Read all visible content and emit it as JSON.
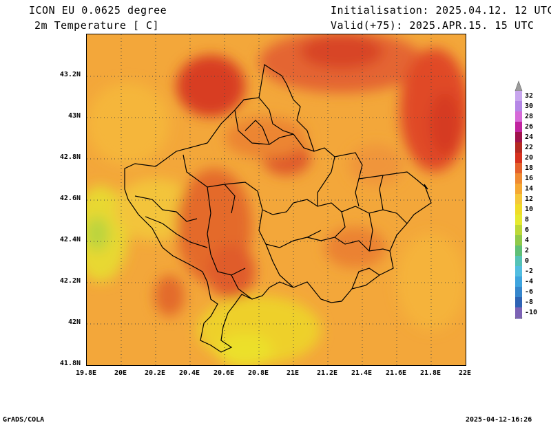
{
  "header": {
    "title_line1": "ICON EU 0.0625 degree",
    "title_line2": "2m Temperature [ C]",
    "init_line": "Initialisation: 2025.04.12. 12 UTC",
    "valid_line": "Valid(+75): 2025.APR.15. 15 UTC"
  },
  "axes": {
    "x_ticks": [
      "19.8E",
      "20E",
      "20.2E",
      "20.4E",
      "20.6E",
      "20.8E",
      "21E",
      "21.2E",
      "21.4E",
      "21.6E",
      "21.8E",
      "22E"
    ],
    "y_ticks": [
      "43.2N",
      "43N",
      "42.8N",
      "42.6N",
      "42.4N",
      "42.2N",
      "42N",
      "41.8N"
    ]
  },
  "colorbar": {
    "levels": [
      "32",
      "30",
      "28",
      "26",
      "24",
      "22",
      "20",
      "18",
      "16",
      "14",
      "12",
      "10",
      "8",
      "6",
      "4",
      "2",
      "0",
      "-2",
      "-4",
      "-6",
      "-8",
      "-10"
    ],
    "colors": [
      "#c8a6ee",
      "#b587e6",
      "#d66ad8",
      "#c0249f",
      "#a0134c",
      "#b42a22",
      "#d6321f",
      "#e4612c",
      "#ef8a32",
      "#f5a833",
      "#f5c73a",
      "#f0dc28",
      "#e6ea30",
      "#bcd838",
      "#8fc94a",
      "#5fbf77",
      "#55c2b6",
      "#52bde0",
      "#3ea4de",
      "#3586cc",
      "#2e63b4",
      "#7c62b5"
    ],
    "top_cap_color": "#9b9b9b",
    "bottom_cap_color": "#9f8dd6"
  },
  "footer": {
    "left": "GrADS/COLA",
    "right": "2025-04-12-16:26"
  }
}
